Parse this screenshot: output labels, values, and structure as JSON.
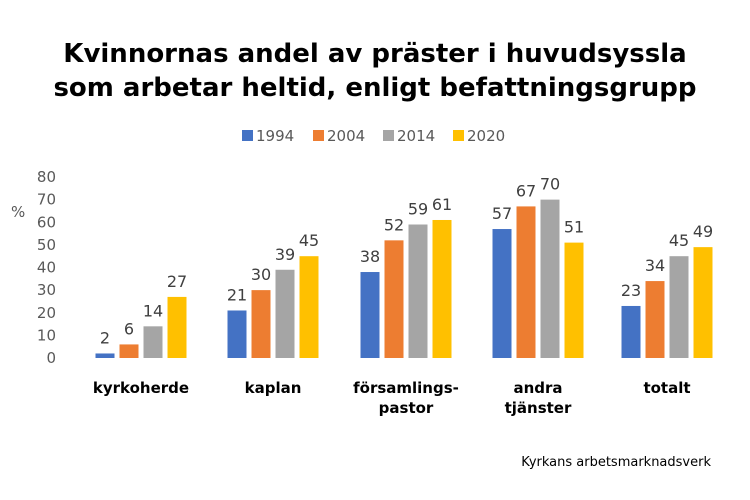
{
  "chart_data": {
    "type": "bar",
    "title": [
      "Kvinnornas andel av präster i huvudsyssla",
      "som arbetar heltid, enligt befattningsgrupp"
    ],
    "ylabel": "%",
    "ylim": [
      0,
      80
    ],
    "yticks": [
      0,
      10,
      20,
      30,
      40,
      50,
      60,
      70,
      80
    ],
    "grid": false,
    "legend_position": "top",
    "categories": [
      [
        "kyrkoherde"
      ],
      [
        "kaplan"
      ],
      [
        "församlings-",
        "pastor"
      ],
      [
        "andra",
        "tjänster"
      ],
      [
        "totalt"
      ]
    ],
    "series": [
      {
        "name": "1994",
        "color": "#4472C4",
        "values": [
          2,
          21,
          38,
          57,
          23
        ]
      },
      {
        "name": "2004",
        "color": "#ED7D31",
        "values": [
          6,
          30,
          52,
          67,
          34
        ]
      },
      {
        "name": "2014",
        "color": "#A5A5A5",
        "values": [
          14,
          39,
          59,
          70,
          45
        ]
      },
      {
        "name": "2020",
        "color": "#FFC000",
        "values": [
          27,
          45,
          61,
          51,
          49
        ]
      }
    ],
    "source": "Kyrkans arbetsmarknadsverk"
  }
}
